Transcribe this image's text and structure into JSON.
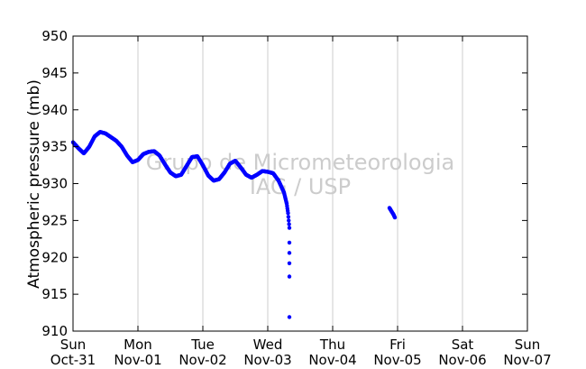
{
  "chart_data": {
    "type": "scatter",
    "ylabel": "Atmospheric pressure (mb)",
    "xlabel": "",
    "ylim": [
      910,
      950
    ],
    "yticks": [
      910,
      915,
      920,
      925,
      930,
      935,
      940,
      945,
      950
    ],
    "xlim": [
      "2010-10-31 00:00",
      "2010-11-07 00:00"
    ],
    "xticks": [
      {
        "day": "Sun",
        "date": "Oct-31"
      },
      {
        "day": "Mon",
        "date": "Nov-01"
      },
      {
        "day": "Tue",
        "date": "Nov-02"
      },
      {
        "day": "Wed",
        "date": "Nov-03"
      },
      {
        "day": "Thu",
        "date": "Nov-04"
      },
      {
        "day": "Fri",
        "date": "Nov-05"
      },
      {
        "day": "Sat",
        "date": "Nov-06"
      },
      {
        "day": "Sun",
        "date": "Nov-07"
      }
    ],
    "grid": "vertical",
    "marker_color": "#0000ff",
    "watermark": [
      "Grupo de Micrometeorologia",
      "IAG / USP"
    ],
    "series": [
      {
        "points": [
          [
            "2010-10-31 00:00",
            935.6
          ],
          [
            "2010-10-31 02:00",
            934.8
          ],
          [
            "2010-10-31 04:00",
            934.1
          ],
          [
            "2010-10-31 06:00",
            935.0
          ],
          [
            "2010-10-31 08:00",
            936.4
          ],
          [
            "2010-10-31 10:00",
            937.0
          ],
          [
            "2010-10-31 12:00",
            936.8
          ],
          [
            "2010-10-31 14:00",
            936.3
          ],
          [
            "2010-10-31 16:00",
            935.8
          ],
          [
            "2010-10-31 18:00",
            935.0
          ],
          [
            "2010-10-31 20:00",
            933.8
          ],
          [
            "2010-10-31 22:00",
            932.9
          ],
          [
            "2010-11-01 00:00",
            933.2
          ],
          [
            "2010-11-01 02:00",
            934.0
          ],
          [
            "2010-11-01 04:00",
            934.3
          ],
          [
            "2010-11-01 06:00",
            934.4
          ],
          [
            "2010-11-01 08:00",
            933.8
          ],
          [
            "2010-11-01 10:00",
            932.6
          ],
          [
            "2010-11-01 12:00",
            931.5
          ],
          [
            "2010-11-01 14:00",
            931.0
          ],
          [
            "2010-11-01 16:00",
            931.2
          ],
          [
            "2010-11-01 18:00",
            932.4
          ],
          [
            "2010-11-01 20:00",
            933.6
          ],
          [
            "2010-11-01 22:00",
            933.7
          ],
          [
            "2010-11-02 00:00",
            932.5
          ],
          [
            "2010-11-02 02:00",
            931.1
          ],
          [
            "2010-11-02 04:00",
            930.4
          ],
          [
            "2010-11-02 06:00",
            930.6
          ],
          [
            "2010-11-02 08:00",
            931.5
          ],
          [
            "2010-11-02 10:00",
            932.7
          ],
          [
            "2010-11-02 12:00",
            933.1
          ],
          [
            "2010-11-02 14:00",
            932.2
          ],
          [
            "2010-11-02 16:00",
            931.2
          ],
          [
            "2010-11-02 18:00",
            930.8
          ],
          [
            "2010-11-02 20:00",
            931.2
          ],
          [
            "2010-11-02 22:00",
            931.7
          ],
          [
            "2010-11-03 00:00",
            931.6
          ],
          [
            "2010-11-03 02:00",
            931.4
          ],
          [
            "2010-11-03 04:00",
            930.4
          ],
          [
            "2010-11-03 06:00",
            928.8
          ],
          [
            "2010-11-03 07:00",
            927.3
          ],
          [
            "2010-11-03 07:30",
            926.0
          ],
          [
            "2010-11-03 08:00",
            924.0
          ],
          [
            "2010-11-03 08:00",
            922.0
          ],
          [
            "2010-11-03 08:00",
            920.6
          ],
          [
            "2010-11-03 08:00",
            919.2
          ],
          [
            "2010-11-03 08:00",
            917.4
          ],
          [
            "2010-11-03 08:00",
            911.9
          ],
          [
            "2010-11-04 21:00",
            926.7
          ],
          [
            "2010-11-04 21:30",
            926.4
          ],
          [
            "2010-11-04 22:00",
            926.1
          ],
          [
            "2010-11-04 22:30",
            925.8
          ],
          [
            "2010-11-04 23:00",
            925.4
          ]
        ]
      }
    ]
  }
}
